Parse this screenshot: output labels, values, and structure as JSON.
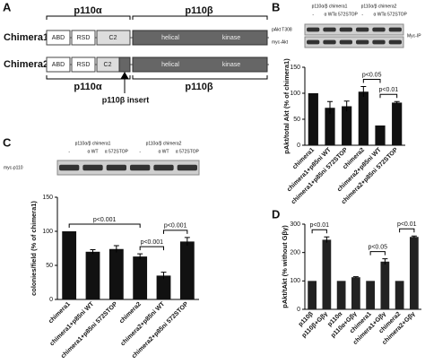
{
  "panel_a": {
    "label": "A",
    "groups_top": [
      "p110α",
      "p110β"
    ],
    "rows": [
      {
        "name": "Chimera1",
        "domains": [
          "ABD",
          "RSD",
          "C2",
          "helical",
          "kinase"
        ]
      },
      {
        "name": "Chimera2",
        "domains": [
          "ABD",
          "RSD",
          "C2",
          "helical",
          "kinase"
        ]
      }
    ],
    "groups_bottom": [
      "p110α",
      "p110β"
    ],
    "insert_label": "p110β insert"
  },
  "panel_b": {
    "label": "B",
    "blot_groups": [
      "p110α/β chimera1",
      "p110α/β chimera2"
    ],
    "lanes": [
      "-",
      "α WT",
      "α 572STOP",
      "-",
      "α WT",
      "α 572STOP"
    ],
    "blot_rows": [
      "pAkt T308",
      "myc-Akt"
    ],
    "ip_label": "Myc-IP"
  },
  "panel_c": {
    "label": "C",
    "blot_groups": [
      "p110α/β chimera1",
      "p110α/β chimera2"
    ],
    "lanes": [
      "-",
      "α WT",
      "α 572STOP",
      "-",
      "α WT",
      "α 572STOP"
    ],
    "blot_rows": [
      "myc-p110"
    ]
  },
  "panel_d": {
    "label": "D"
  },
  "chart_data": [
    {
      "type": "bar",
      "y_label": "pAkt/total Akt (% of chimera1)",
      "categories": [
        "chimera1",
        "chimera1+p85ni WT",
        "chimera1+p85ni 572STOP",
        "chimera2",
        "chimera2+p85ni WT",
        "chimera2+p85ni 572STOP"
      ],
      "values": [
        100,
        72,
        75,
        103,
        38,
        82
      ],
      "errors": [
        0,
        12,
        10,
        10,
        0,
        2
      ],
      "color": "#111111",
      "ylim": [
        0,
        150
      ],
      "yticks": [
        0,
        50,
        100,
        150
      ],
      "annotations": [
        {
          "text": "p<0.05",
          "from": 3,
          "to": 4
        },
        {
          "text": "p<0.01",
          "from": 4,
          "to": 5
        }
      ]
    },
    {
      "type": "bar",
      "y_label": "colonies/field (% of chimera1)",
      "categories": [
        "chimera1",
        "chimera1+p85ni WT",
        "chimera1+p85ni 572STOP",
        "chimera2",
        "chimera2+p85ni WT",
        "chimera2+p85ni 572STOP"
      ],
      "values": [
        100,
        70,
        74,
        63,
        35,
        85
      ],
      "errors": [
        0,
        3,
        5,
        4,
        5,
        6
      ],
      "color": "#111111",
      "ylim": [
        0,
        150
      ],
      "yticks": [
        0,
        50,
        100,
        150
      ],
      "annotations": [
        {
          "text": "p<0.001",
          "from": 0,
          "to": 3
        },
        {
          "text": "p<0.001",
          "from": 3,
          "to": 4
        },
        {
          "text": "p<0.001",
          "from": 4,
          "to": 5
        }
      ]
    },
    {
      "type": "bar",
      "y_label": "pAkt/tAkt (% without Gβγ)",
      "categories": [
        "p110β",
        "p110β+Gβγ",
        "p110α",
        "p110α+Gβγ",
        "chimera1",
        "chimera1+Gβγ",
        "chimera2",
        "chimera2+Gβγ"
      ],
      "values": [
        100,
        245,
        100,
        113,
        100,
        168,
        100,
        255
      ],
      "errors": [
        0,
        10,
        0,
        2,
        0,
        10,
        0,
        3
      ],
      "color": "#222222",
      "ylim": [
        0,
        300
      ],
      "yticks": [
        0,
        100,
        200,
        300
      ],
      "annotations": [
        {
          "text": "p<0.01",
          "from": 0,
          "to": 1
        },
        {
          "text": "p<0.05",
          "from": 4,
          "to": 5
        },
        {
          "text": "p<0.01",
          "from": 6,
          "to": 7
        }
      ]
    }
  ]
}
